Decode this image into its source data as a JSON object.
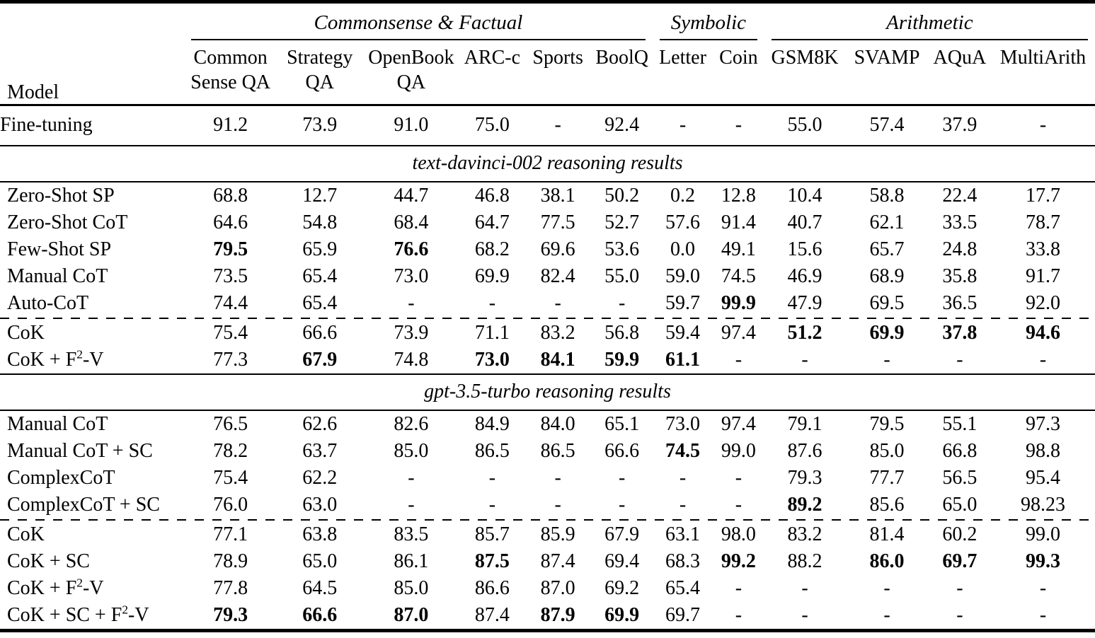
{
  "table": {
    "model_header": "Model",
    "groups": [
      {
        "label": "Commonsense & Factual",
        "cols": 6
      },
      {
        "label": "Symbolic",
        "cols": 2
      },
      {
        "label": "Arithmetic",
        "cols": 4
      }
    ],
    "columns": [
      "Common Sense QA",
      "Strategy QA",
      "OpenBook QA",
      "ARC-c",
      "Sports",
      "BoolQ",
      "Letter",
      "Coin",
      "GSM8K",
      "SVAMP",
      "AQuA",
      "MultiArith"
    ],
    "baseline_rows": [
      {
        "model": "Fine-tuning",
        "values": [
          "91.2",
          "73.9",
          "91.0",
          "75.0",
          "-",
          "92.4",
          "-",
          "-",
          "55.0",
          "57.4",
          "37.9",
          "-"
        ],
        "bold": []
      }
    ],
    "sections": [
      {
        "title": "text-davinci-002 reasoning results",
        "rows": [
          {
            "model": "Zero-Shot SP",
            "values": [
              "68.8",
              "12.7",
              "44.7",
              "46.8",
              "38.1",
              "50.2",
              "0.2",
              "12.8",
              "10.4",
              "58.8",
              "22.4",
              "17.7"
            ],
            "bold": []
          },
          {
            "model": "Zero-Shot CoT",
            "values": [
              "64.6",
              "54.8",
              "68.4",
              "64.7",
              "77.5",
              "52.7",
              "57.6",
              "91.4",
              "40.7",
              "62.1",
              "33.5",
              "78.7"
            ],
            "bold": []
          },
          {
            "model": "Few-Shot SP",
            "values": [
              "79.5",
              "65.9",
              "76.6",
              "68.2",
              "69.6",
              "53.6",
              "0.0",
              "49.1",
              "15.6",
              "65.7",
              "24.8",
              "33.8"
            ],
            "bold": [
              0,
              2
            ]
          },
          {
            "model": "Manual CoT",
            "values": [
              "73.5",
              "65.4",
              "73.0",
              "69.9",
              "82.4",
              "55.0",
              "59.0",
              "74.5",
              "46.9",
              "68.9",
              "35.8",
              "91.7"
            ],
            "bold": []
          },
          {
            "model": "Auto-CoT",
            "values": [
              "74.4",
              "65.4",
              "-",
              "-",
              "-",
              "-",
              "59.7",
              "99.9",
              "47.9",
              "69.5",
              "36.5",
              "92.0"
            ],
            "bold": [
              7
            ]
          },
          {
            "model": "CoK",
            "values": [
              "75.4",
              "66.6",
              "73.9",
              "71.1",
              "83.2",
              "56.8",
              "59.4",
              "97.4",
              "51.2",
              "69.9",
              "37.8",
              "94.6"
            ],
            "bold": [
              8,
              9,
              10,
              11
            ],
            "dashed_above": true
          },
          {
            "model": "CoK + F²-V",
            "values": [
              "77.3",
              "67.9",
              "74.8",
              "73.0",
              "84.1",
              "59.9",
              "61.1",
              "-",
              "-",
              "-",
              "-",
              "-"
            ],
            "bold": [
              1,
              3,
              4,
              5,
              6
            ]
          }
        ]
      },
      {
        "title": "gpt-3.5-turbo reasoning results",
        "rows": [
          {
            "model": "Manual CoT",
            "values": [
              "76.5",
              "62.6",
              "82.6",
              "84.9",
              "84.0",
              "65.1",
              "73.0",
              "97.4",
              "79.1",
              "79.5",
              "55.1",
              "97.3"
            ],
            "bold": []
          },
          {
            "model": "Manual CoT + SC",
            "values": [
              "78.2",
              "63.7",
              "85.0",
              "86.5",
              "86.5",
              "66.6",
              "74.5",
              "99.0",
              "87.6",
              "85.0",
              "66.8",
              "98.8"
            ],
            "bold": [
              6
            ]
          },
          {
            "model": "ComplexCoT",
            "values": [
              "75.4",
              "62.2",
              "-",
              "-",
              "-",
              "-",
              "-",
              "-",
              "79.3",
              "77.7",
              "56.5",
              "95.4"
            ],
            "bold": []
          },
          {
            "model": "ComplexCoT + SC",
            "values": [
              "76.0",
              "63.0",
              "-",
              "-",
              "-",
              "-",
              "-",
              "-",
              "89.2",
              "85.6",
              "65.0",
              "98.23"
            ],
            "bold": [
              8
            ]
          },
          {
            "model": "CoK",
            "values": [
              "77.1",
              "63.8",
              "83.5",
              "85.7",
              "85.9",
              "67.9",
              "63.1",
              "98.0",
              "83.2",
              "81.4",
              "60.2",
              "99.0"
            ],
            "bold": [],
            "dashed_above": true
          },
          {
            "model": "CoK + SC",
            "values": [
              "78.9",
              "65.0",
              "86.1",
              "87.5",
              "87.4",
              "69.4",
              "68.3",
              "99.2",
              "88.2",
              "86.0",
              "69.7",
              "99.3"
            ],
            "bold": [
              3,
              7,
              9,
              10,
              11
            ]
          },
          {
            "model": "CoK + F²-V",
            "values": [
              "77.8",
              "64.5",
              "85.0",
              "86.6",
              "87.0",
              "69.2",
              "65.4",
              "-",
              "-",
              "-",
              "-",
              "-"
            ],
            "bold": []
          },
          {
            "model": "CoK + SC + F²-V",
            "values": [
              "79.3",
              "66.6",
              "87.0",
              "87.4",
              "87.9",
              "69.9",
              "69.7",
              "-",
              "-",
              "-",
              "-",
              "-"
            ],
            "bold": [
              0,
              1,
              2,
              4,
              5
            ]
          }
        ]
      }
    ]
  }
}
